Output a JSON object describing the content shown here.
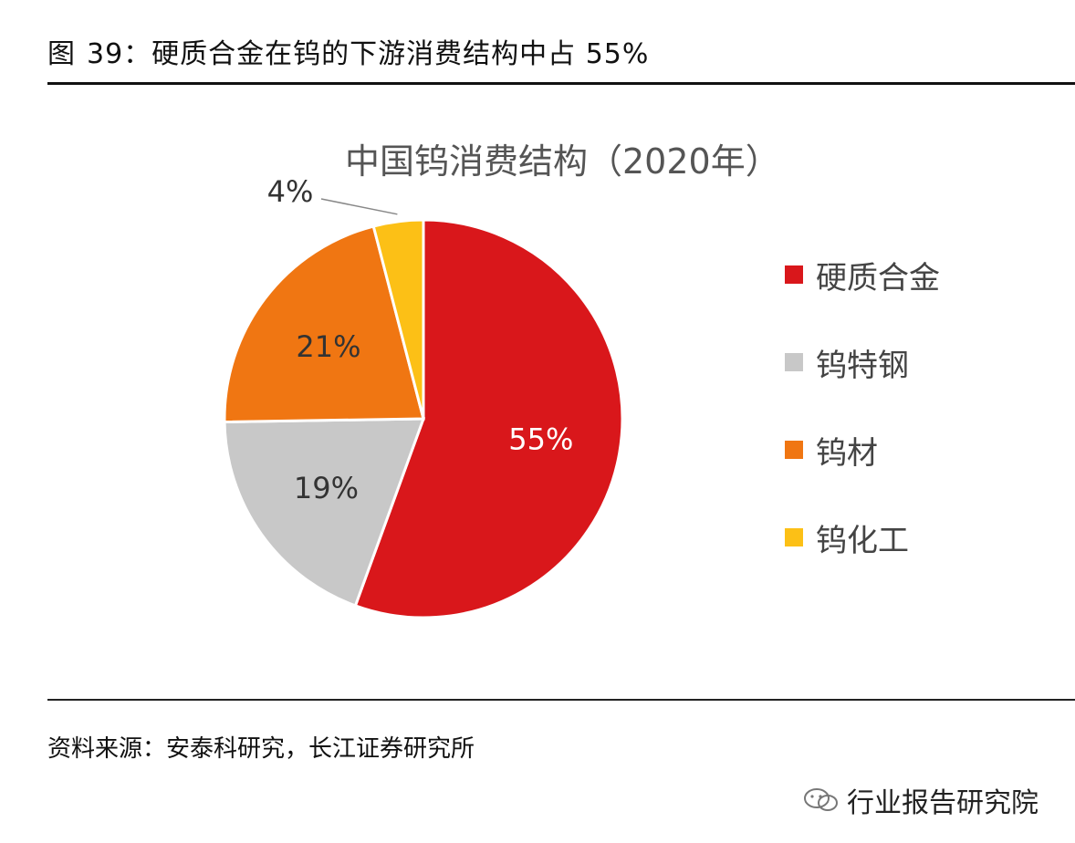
{
  "figure": {
    "label": "图",
    "number_caption": "39：硬质合金在钨的下游消费结构中占 55%"
  },
  "source": "资料来源：安泰科研究，长江证券研究所",
  "watermark": "行业报告研究院",
  "chart_data": {
    "type": "pie",
    "title": "中国钨消费结构（2020年）",
    "slices": [
      {
        "name": "硬质合金",
        "value": 55,
        "label": "55%",
        "color": "#d9171b"
      },
      {
        "name": "钨特钢",
        "value": 19,
        "label": "19%",
        "color": "#c8c8c8"
      },
      {
        "name": "钨材",
        "value": 21,
        "label": "21%",
        "color": "#f07612"
      },
      {
        "name": "钨化工",
        "value": 4,
        "label": "4%",
        "color": "#fcc016"
      }
    ],
    "legend_position": "right"
  }
}
